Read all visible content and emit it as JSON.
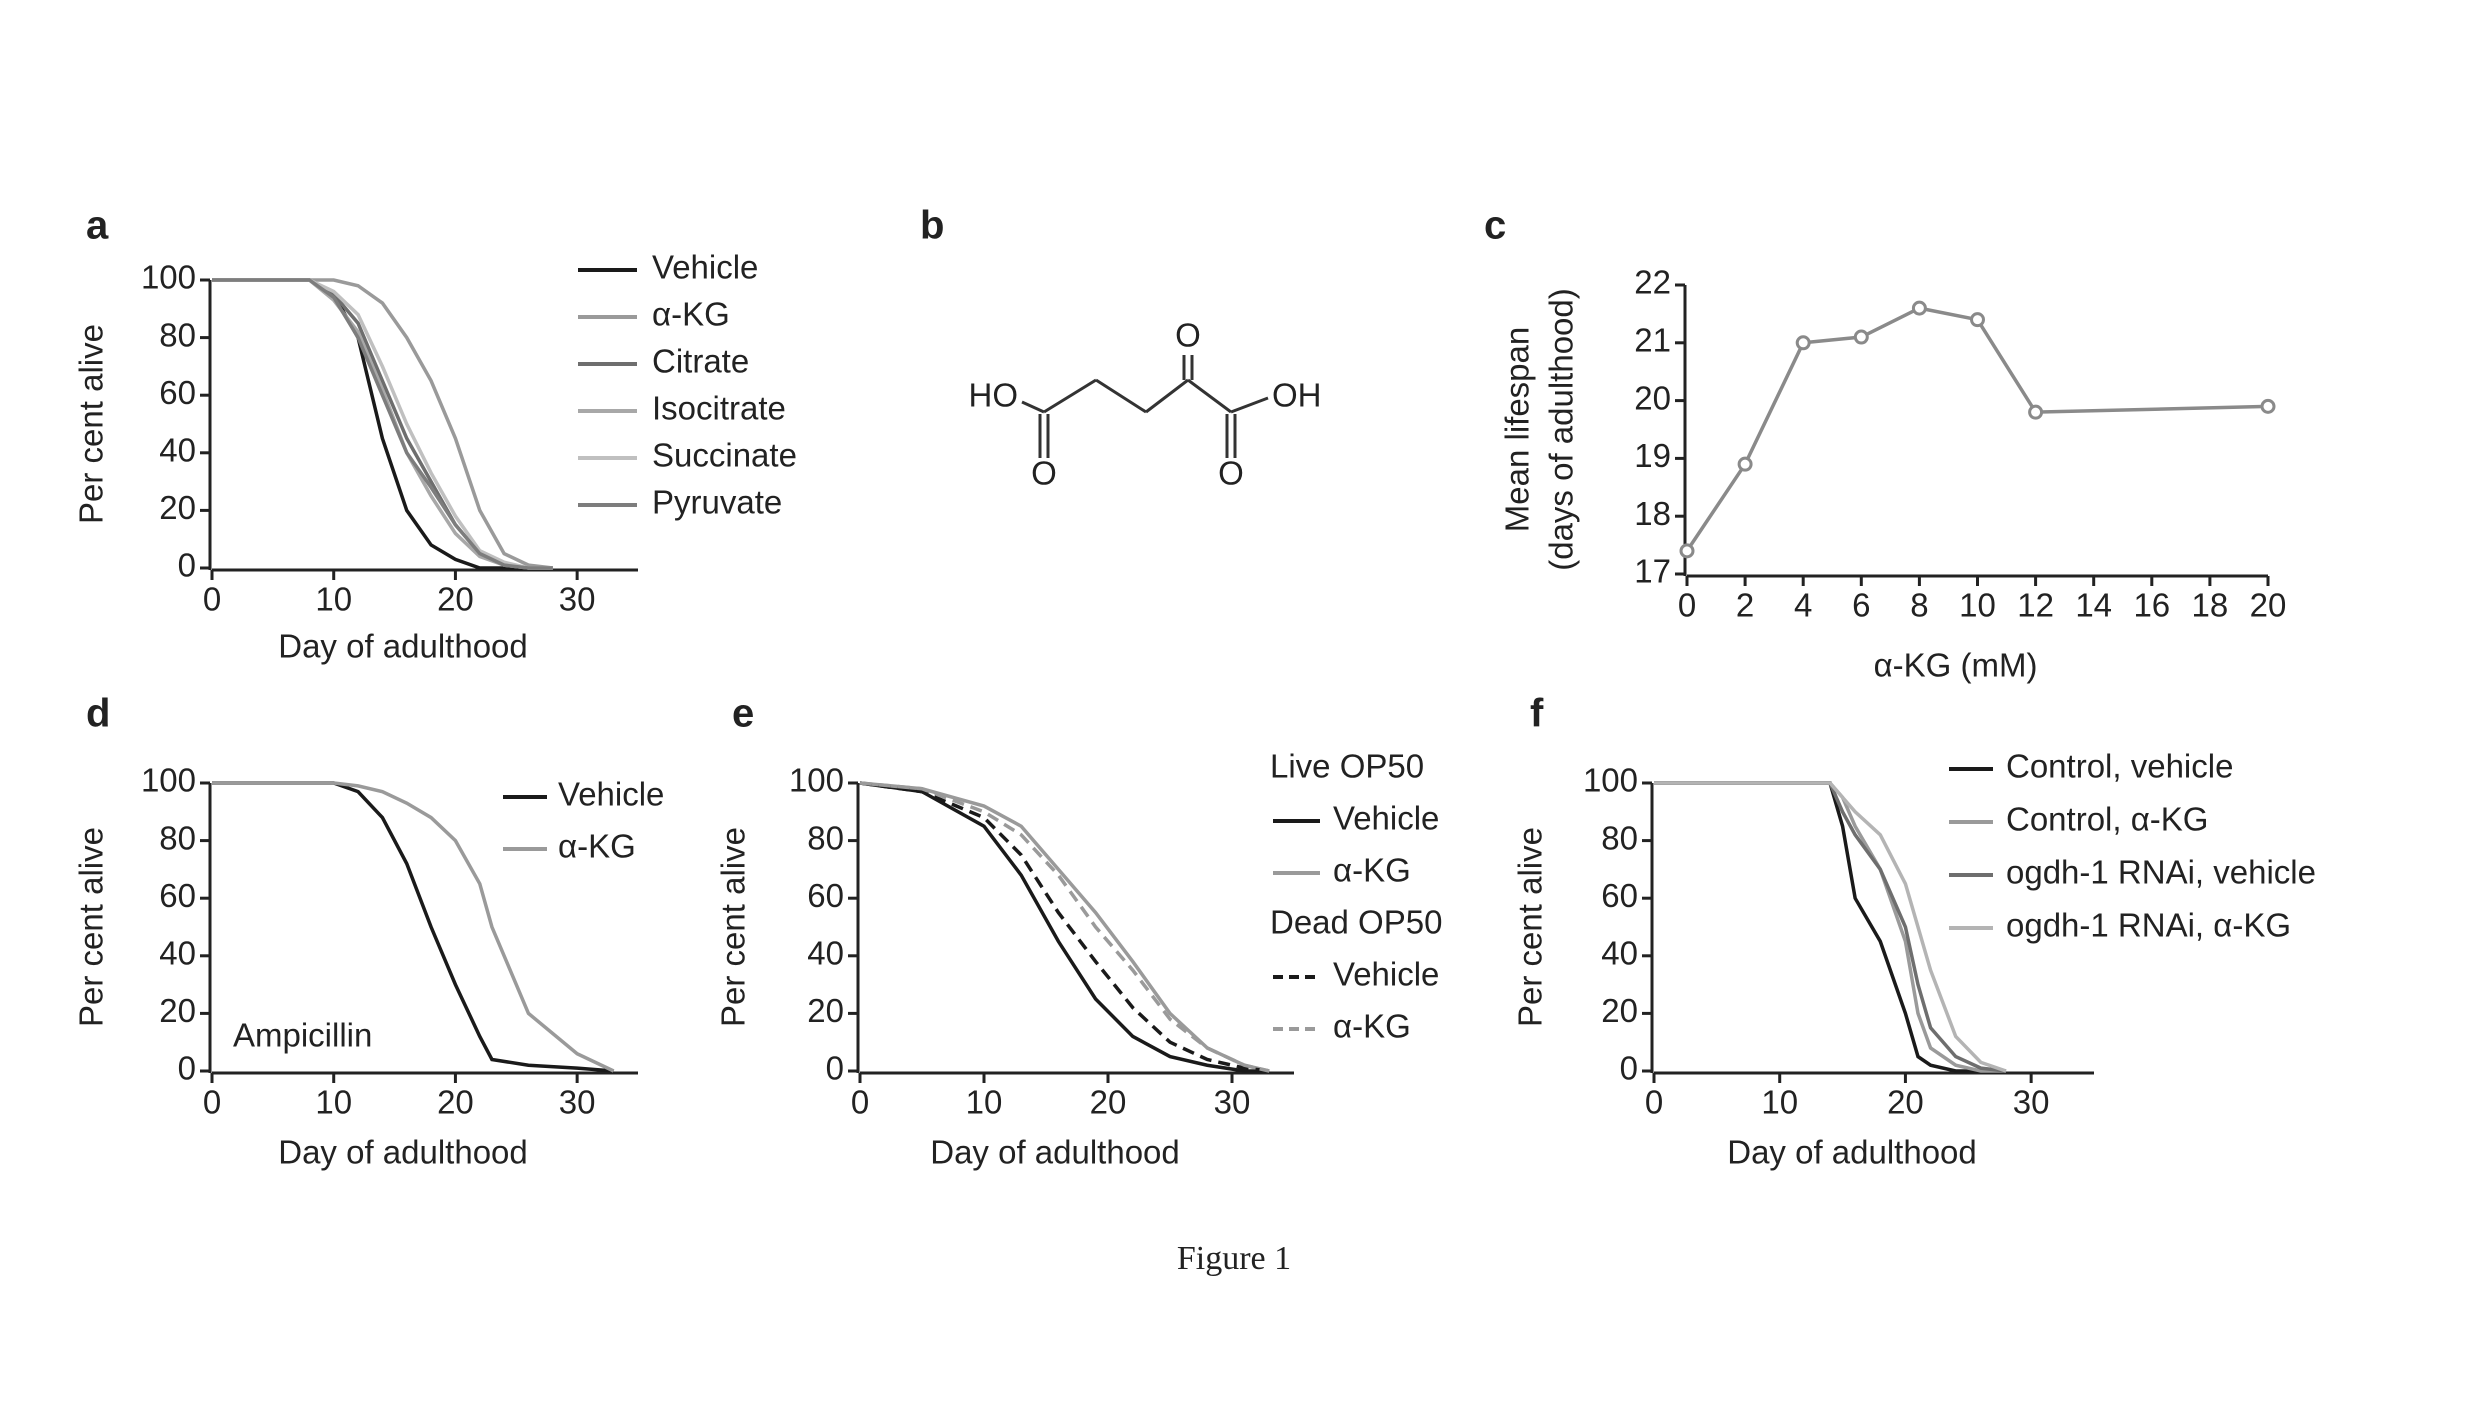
{
  "chart_data": [
    {
      "type": "line",
      "panel": "a",
      "xlabel": "Day of adulthood",
      "ylabel": [
        "Per cent alive"
      ],
      "x": [
        0,
        4,
        8,
        10,
        12,
        14,
        16,
        18,
        20,
        22,
        24,
        26,
        28
      ],
      "xlim": [
        0,
        35
      ],
      "xticks": [
        0,
        10,
        20,
        30
      ],
      "ylim": [
        0,
        100
      ],
      "yticks": [
        0,
        20,
        40,
        60,
        80,
        100
      ],
      "series": [
        {
          "name": "Vehicle",
          "color": "#1a1a1a",
          "values": [
            100,
            100,
            100,
            95,
            80,
            45,
            20,
            8,
            3,
            0,
            0,
            0,
            0
          ]
        },
        {
          "name": "α-KG",
          "color": "#9a9a9a",
          "values": [
            100,
            100,
            100,
            100,
            98,
            92,
            80,
            65,
            45,
            20,
            5,
            1,
            0
          ]
        },
        {
          "name": "Citrate",
          "color": "#6e6e6e",
          "values": [
            100,
            100,
            100,
            95,
            85,
            65,
            45,
            30,
            15,
            5,
            1,
            0,
            0
          ]
        },
        {
          "name": "Isocitrate",
          "color": "#a8a8a8",
          "values": [
            100,
            100,
            100,
            93,
            82,
            62,
            40,
            25,
            12,
            4,
            1,
            0,
            0
          ]
        },
        {
          "name": "Succinate",
          "color": "#c0c0c0",
          "values": [
            100,
            100,
            100,
            96,
            88,
            70,
            50,
            33,
            18,
            6,
            2,
            0,
            0
          ]
        },
        {
          "name": "Pyruvate",
          "color": "#7d7d7d",
          "values": [
            100,
            100,
            100,
            94,
            80,
            60,
            40,
            28,
            15,
            5,
            1,
            0,
            0
          ]
        }
      ]
    },
    {
      "type": "line",
      "panel": "c",
      "markers": true,
      "xlabel": "α-KG (mM)",
      "ylabel": [
        "Mean lifespan",
        "(days of adulthood)"
      ],
      "x": [
        0,
        2,
        4,
        6,
        8,
        10,
        12,
        20
      ],
      "xlim": [
        0,
        20
      ],
      "xticks": [
        0,
        2,
        4,
        6,
        8,
        10,
        12,
        14,
        16,
        18,
        20
      ],
      "ylim": [
        17,
        22
      ],
      "yticks": [
        17,
        18,
        19,
        20,
        21,
        22
      ],
      "series": [
        {
          "color": "#8a8a8a",
          "values": [
            17.4,
            18.9,
            21.0,
            21.1,
            21.6,
            21.4,
            19.8,
            19.9
          ]
        }
      ]
    },
    {
      "type": "line",
      "panel": "d",
      "xlabel": "Day of adulthood",
      "ylabel": [
        "Per cent alive"
      ],
      "annotation": "Ampicillin",
      "x": [
        0,
        5,
        10,
        12,
        14,
        16,
        18,
        20,
        22,
        23,
        26,
        30,
        33
      ],
      "xlim": [
        0,
        35
      ],
      "xticks": [
        0,
        10,
        20,
        30
      ],
      "ylim": [
        0,
        100
      ],
      "yticks": [
        0,
        20,
        40,
        60,
        80,
        100
      ],
      "series": [
        {
          "name": "Vehicle",
          "color": "#1a1a1a",
          "values": [
            100,
            100,
            100,
            97,
            88,
            72,
            50,
            30,
            12,
            4,
            2,
            1,
            0
          ]
        },
        {
          "name": "α-KG",
          "color": "#9a9a9a",
          "values": [
            100,
            100,
            100,
            99,
            97,
            93,
            88,
            80,
            65,
            50,
            20,
            6,
            0
          ]
        }
      ]
    },
    {
      "type": "line",
      "panel": "e",
      "xlabel": "Day of adulthood",
      "ylabel": [
        "Per cent alive"
      ],
      "x": [
        0,
        5,
        10,
        13,
        16,
        19,
        22,
        25,
        28,
        31,
        33
      ],
      "xlim": [
        0,
        35
      ],
      "xticks": [
        0,
        10,
        20,
        30
      ],
      "ylim": [
        0,
        100
      ],
      "yticks": [
        0,
        20,
        40,
        60,
        80,
        100
      ],
      "series_groups": [
        {
          "title": "Live OP50",
          "series": [
            {
              "name": "Vehicle",
              "color": "#1a1a1a",
              "values": [
                100,
                97,
                85,
                68,
                45,
                25,
                12,
                5,
                2,
                0,
                0
              ]
            },
            {
              "name": "α-KG",
              "color": "#9a9a9a",
              "values": [
                100,
                98,
                92,
                85,
                70,
                55,
                38,
                20,
                8,
                2,
                0
              ]
            }
          ]
        },
        {
          "title": "Dead OP50",
          "series": [
            {
              "name": "Vehicle",
              "color": "#1a1a1a",
              "dashed": true,
              "values": [
                100,
                97,
                88,
                75,
                55,
                38,
                22,
                10,
                4,
                1,
                0
              ]
            },
            {
              "name": "α-KG",
              "color": "#9a9a9a",
              "dashed": true,
              "values": [
                100,
                98,
                90,
                82,
                68,
                50,
                35,
                18,
                8,
                2,
                0
              ]
            }
          ]
        }
      ]
    },
    {
      "type": "line",
      "panel": "f",
      "xlabel": "Day of adulthood",
      "ylabel": [
        "Per cent alive"
      ],
      "x": [
        0,
        5,
        10,
        14,
        15,
        16,
        18,
        20,
        21,
        22,
        24,
        26,
        28
      ],
      "xlim": [
        0,
        35
      ],
      "xticks": [
        0,
        10,
        20,
        30
      ],
      "ylim": [
        0,
        100
      ],
      "yticks": [
        0,
        20,
        40,
        60,
        80,
        100
      ],
      "series": [
        {
          "name": "Control, vehicle",
          "color": "#1a1a1a",
          "values": [
            100,
            100,
            100,
            100,
            85,
            60,
            45,
            20,
            5,
            2,
            0,
            0,
            0
          ]
        },
        {
          "name": "Control, α-KG",
          "color": "#9a9a9a",
          "values": [
            100,
            100,
            100,
            100,
            95,
            85,
            70,
            45,
            20,
            8,
            2,
            0,
            0
          ]
        },
        {
          "name": "ogdh-1 RNAi, vehicle",
          "color": "#6e6e6e",
          "values": [
            100,
            100,
            100,
            100,
            90,
            82,
            70,
            50,
            30,
            15,
            5,
            1,
            0
          ]
        },
        {
          "name": "ogdh-1 RNAi, α-KG",
          "color": "#b4b4b4",
          "values": [
            100,
            100,
            100,
            100,
            95,
            90,
            82,
            65,
            50,
            35,
            12,
            3,
            0
          ]
        }
      ]
    }
  ],
  "structure": {
    "panel": "b",
    "left_group": "HO",
    "top_oxygen": "O",
    "right_group": "OH",
    "bottom_left_oxygen": "O",
    "bottom_right_oxygen": "O"
  },
  "caption": "Figure 1"
}
